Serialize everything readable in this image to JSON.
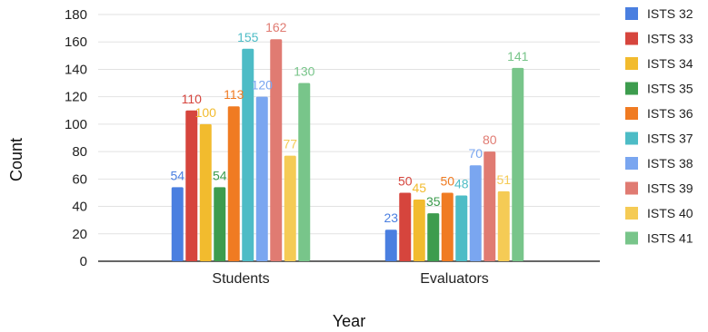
{
  "chart_data": {
    "type": "bar",
    "title": "",
    "xlabel": "Year",
    "ylabel": "Count",
    "ylim": [
      0,
      180
    ],
    "yticks": [
      0,
      20,
      40,
      60,
      80,
      100,
      120,
      140,
      160,
      180
    ],
    "grid": true,
    "legend_position": "right",
    "categories": [
      "Students",
      "Evaluators"
    ],
    "series": [
      {
        "name": "ISTS 32",
        "color": "#4a7fe0",
        "values": [
          54,
          23
        ]
      },
      {
        "name": "ISTS 33",
        "color": "#d6453d",
        "values": [
          110,
          50
        ]
      },
      {
        "name": "ISTS 34",
        "color": "#f2bb2e",
        "values": [
          100,
          45
        ]
      },
      {
        "name": "ISTS 35",
        "color": "#3d9c4e",
        "values": [
          54,
          35
        ]
      },
      {
        "name": "ISTS 36",
        "color": "#f07b22",
        "values": [
          113,
          50
        ]
      },
      {
        "name": "ISTS 37",
        "color": "#4dbcc6",
        "values": [
          155,
          48
        ]
      },
      {
        "name": "ISTS 38",
        "color": "#7aa6f0",
        "values": [
          120,
          70
        ]
      },
      {
        "name": "ISTS 39",
        "color": "#e07b72",
        "values": [
          162,
          80
        ]
      },
      {
        "name": "ISTS 40",
        "color": "#f5cb55",
        "values": [
          77,
          51
        ]
      },
      {
        "name": "ISTS 41",
        "color": "#78c58a",
        "values": [
          130,
          141
        ]
      }
    ]
  }
}
